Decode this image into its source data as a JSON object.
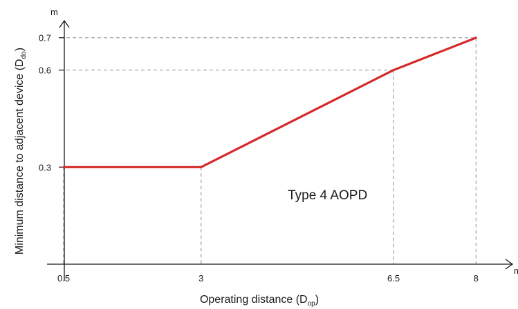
{
  "chart_data": {
    "type": "line",
    "x": [
      0.5,
      3,
      6.5,
      8
    ],
    "series": [
      {
        "values": [
          0.3,
          0.3,
          0.6,
          0.7
        ],
        "color": "#d42a2a"
      }
    ],
    "xlabel": {
      "prefix": "Operating distance (D",
      "sub": "op",
      "suffix": ")"
    },
    "ylabel": {
      "prefix": "Minimum distance to adjacent device (D",
      "sub": "do",
      "suffix": ")"
    },
    "x_unit": "m",
    "y_unit": "m",
    "xticks": [
      {
        "value": 0.5,
        "label": "0.5"
      },
      {
        "value": 3,
        "label": "3"
      },
      {
        "value": 6.5,
        "label": "6.5"
      },
      {
        "value": 8,
        "label": "8"
      }
    ],
    "yticks": [
      {
        "value": 0.3,
        "label": "0.3"
      },
      {
        "value": 0.6,
        "label": "0.6"
      },
      {
        "value": 0.7,
        "label": "0.7"
      }
    ],
    "annotations": [
      {
        "text": "Type 4 AOPD",
        "x": 5.3,
        "y": 0.2
      }
    ],
    "grid": false,
    "guide_lines": "dashed",
    "axis_color": "#1a1a1a",
    "guide_color": "#8c8c8c"
  }
}
